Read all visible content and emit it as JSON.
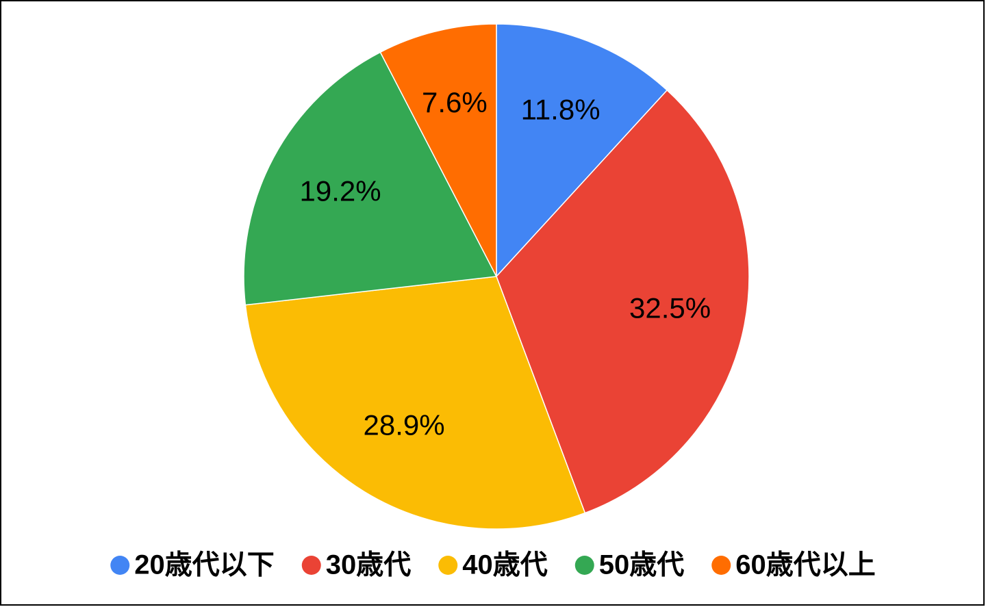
{
  "chart_data": {
    "type": "pie",
    "categories": [
      "20歳代以下",
      "30歳代",
      "40歳代",
      "50歳代",
      "60歳代以上"
    ],
    "values": [
      11.8,
      32.5,
      28.9,
      19.2,
      7.6
    ],
    "value_labels": [
      "11.8%",
      "32.5%",
      "28.9%",
      "19.2%",
      "7.6%"
    ],
    "colors": [
      "#4285f4",
      "#ea4335",
      "#fbbc04",
      "#34a853",
      "#ff6d01"
    ],
    "legend": "bottom"
  }
}
